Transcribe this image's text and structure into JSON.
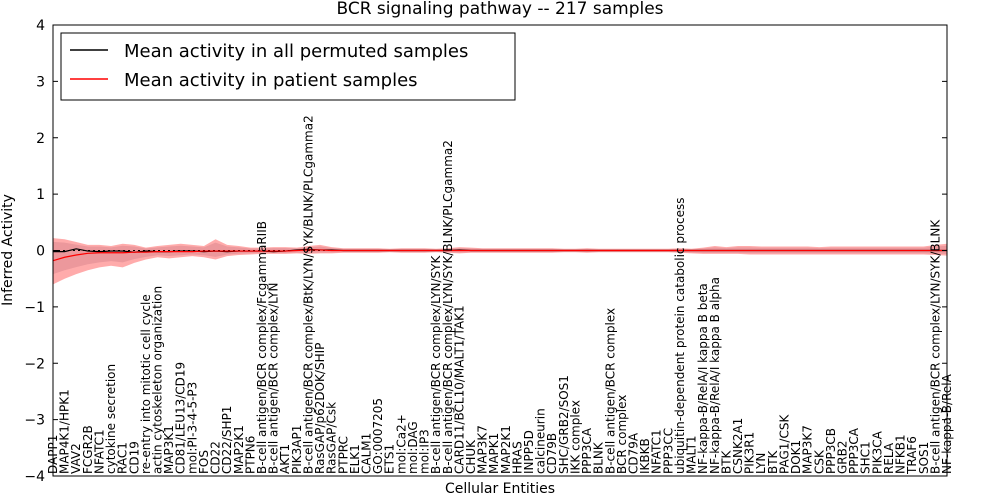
{
  "chart_data": {
    "type": "line",
    "title": "BCR signaling pathway -- 217 samples",
    "xlabel": "Cellular Entities",
    "ylabel": "Inferred Activity",
    "ylim": [
      -4,
      4
    ],
    "yticks": [
      -4,
      -3,
      -2,
      -1,
      0,
      1,
      2,
      3,
      4
    ],
    "ytick_labels": [
      "−4",
      "−3",
      "−2",
      "−1",
      "0",
      "1",
      "2",
      "3",
      "4"
    ],
    "legend": {
      "location": "top-left",
      "entries": [
        {
          "label": "Mean activity in all permuted samples",
          "color": "#000000"
        },
        {
          "label": "Mean activity in patient samples",
          "color": "#ff0000"
        }
      ]
    },
    "categories": [
      "DAPP1",
      "MAP4K1/HPK1",
      "VAV2",
      "FCGR2B",
      "NFATC1",
      "cytokine secretion",
      "RAC1",
      "CD19",
      "re-entry into mitotic cell cycle",
      "actin cytoskeleton organization",
      "MAP3K1",
      "CD81/LEU13/CD19",
      "mol:PI-3-4-5-P3",
      "FOS",
      "CD22",
      "CD22/SHP1",
      "MAP2K1",
      "PTPN6",
      "B-cell antigen/BCR complex/FcgammaRIIB",
      "B-cell antigen/BCR complex/LYN",
      "AKT1",
      "PIK3AP1",
      "B-cell antigen/BCR complex/BtK/LYN/SYK/BLNK/PLCgamma2",
      "RasGAP/p62DOK/SHIP",
      "RasGAP/Csk",
      "PTPRC",
      "ELK1",
      "CALM1",
      "GO:0007205",
      "ETS1",
      "mol:Ca2+",
      "mol:DAG",
      "mol:IP3",
      "B-cell antigen/BCR complex/LYN/SYK",
      "B-cell antigen/BCR complex/LYN/SYK/BLNK/PLCgamma2",
      "CARD11/BCL10/MALT1/TAK1",
      "CHUK",
      "MAP3K7",
      "MAPK1",
      "MAP2K1",
      "HRAS",
      "INPP5D",
      "calcineurin",
      "CD79B",
      "SHC/GRB2/SOS1",
      "IKK complex",
      "PPP3CA",
      "BLNK",
      "B-cell antigen/BCR complex",
      "BCR complex",
      "CD79A",
      "IKBKB",
      "NFATC1",
      "PPP3CC",
      "ubiquitin-dependent protein catabolic process",
      "MALT1",
      "NF-kappa-B/RelA/I kappa B beta",
      "NF-kappa-B/RelA/I kappa B alpha",
      "BTK",
      "CSNK2A1",
      "PIK3R1",
      "LYN",
      "BTK",
      "PAG1/CSK",
      "DOK1",
      "MAP3K7",
      "CSK",
      "PPP3CB",
      "GRB2",
      "PPP3CA",
      "SHC1",
      "PIK3CA",
      "RELA",
      "NFKB1",
      "TRAF6",
      "SOS1",
      "B-cell antigen/BCR complex/LYN/SYK/BLNK",
      "NF-kappa-B/RelA"
    ],
    "series": [
      {
        "name": "Mean activity in all permuted samples",
        "color": "#000000",
        "values": [
          -0.02,
          -0.02,
          0.03,
          -0.01,
          -0.02,
          -0.01,
          -0.01,
          -0.03,
          -0.01,
          -0.02,
          -0.02,
          -0.01,
          -0.01,
          -0.02,
          -0.01,
          -0.02,
          -0.01,
          -0.01,
          -0.01,
          -0.02,
          -0.01,
          0.01,
          0.02,
          0.01,
          0.01,
          0.0,
          0.0,
          0.0,
          0.0,
          0.0,
          0.0,
          0.0,
          0.0,
          0.0,
          0.0,
          0.01,
          0.0,
          0.0,
          0.0,
          0.0,
          0.0,
          0.0,
          0.0,
          0.0,
          0.0,
          0.0,
          0.0,
          0.0,
          0.0,
          0.0,
          0.0,
          0.0,
          0.0,
          0.0,
          0.0,
          0.0,
          0.0,
          0.0,
          0.0,
          0.0,
          0.0,
          0.0,
          0.0,
          0.0,
          0.0,
          0.0,
          0.0,
          0.0,
          0.0,
          0.0,
          0.0,
          0.0,
          0.0,
          0.0,
          0.0,
          0.0,
          0.0,
          0.0
        ]
      },
      {
        "name": "Mean activity in patient samples",
        "color": "#ff0000",
        "values": [
          -0.18,
          -0.12,
          -0.08,
          -0.05,
          -0.04,
          -0.04,
          -0.04,
          -0.03,
          -0.03,
          -0.02,
          -0.02,
          -0.02,
          -0.02,
          -0.01,
          -0.01,
          -0.01,
          -0.01,
          -0.01,
          -0.01,
          -0.01,
          -0.01,
          0.0,
          0.01,
          0.01,
          0.0,
          0.0,
          0.0,
          0.0,
          0.0,
          0.0,
          0.0,
          0.0,
          0.0,
          0.0,
          0.0,
          0.0,
          0.0,
          0.0,
          0.0,
          0.0,
          0.0,
          0.0,
          0.0,
          0.0,
          0.0,
          0.0,
          0.0,
          0.0,
          0.0,
          0.0,
          0.0,
          0.0,
          0.0,
          0.0,
          0.0,
          0.0,
          0.0,
          0.0,
          0.0,
          0.0,
          0.0,
          0.0,
          0.0,
          0.0,
          0.0,
          0.0,
          0.0,
          0.0,
          0.0,
          0.0,
          0.0,
          0.0,
          0.0,
          0.0,
          0.0,
          0.0,
          0.0,
          0.0
        ],
        "band_upper": [
          0.22,
          0.2,
          0.15,
          0.1,
          0.1,
          0.08,
          0.12,
          0.1,
          0.05,
          0.08,
          0.1,
          0.12,
          0.1,
          0.08,
          0.2,
          0.1,
          0.08,
          0.05,
          0.05,
          0.06,
          0.06,
          0.05,
          0.08,
          0.1,
          0.06,
          0.04,
          0.04,
          0.04,
          0.04,
          0.03,
          0.04,
          0.04,
          0.04,
          0.03,
          0.04,
          0.06,
          0.05,
          0.04,
          0.04,
          0.04,
          0.04,
          0.04,
          0.04,
          0.04,
          0.03,
          0.03,
          0.04,
          0.03,
          0.03,
          0.03,
          0.03,
          0.03,
          0.03,
          0.03,
          0.04,
          0.03,
          0.05,
          0.08,
          0.06,
          0.08,
          0.08,
          0.07,
          0.07,
          0.07,
          0.07,
          0.07,
          0.06,
          0.07,
          0.07,
          0.07,
          0.07,
          0.07,
          0.07,
          0.07,
          0.07,
          0.07,
          0.1,
          0.12
        ],
        "band_lower": [
          -0.6,
          -0.5,
          -0.42,
          -0.35,
          -0.3,
          -0.27,
          -0.3,
          -0.22,
          -0.16,
          -0.12,
          -0.14,
          -0.12,
          -0.1,
          -0.12,
          -0.16,
          -0.1,
          -0.08,
          -0.07,
          -0.06,
          -0.06,
          -0.06,
          -0.05,
          -0.06,
          -0.05,
          -0.05,
          -0.04,
          -0.04,
          -0.04,
          -0.04,
          -0.03,
          -0.04,
          -0.04,
          -0.04,
          -0.03,
          -0.04,
          -0.05,
          -0.04,
          -0.04,
          -0.04,
          -0.04,
          -0.04,
          -0.04,
          -0.04,
          -0.04,
          -0.03,
          -0.03,
          -0.04,
          -0.03,
          -0.03,
          -0.03,
          -0.03,
          -0.03,
          -0.03,
          -0.03,
          -0.04,
          -0.05,
          -0.06,
          -0.06,
          -0.06,
          -0.06,
          -0.07,
          -0.07,
          -0.07,
          -0.07,
          -0.07,
          -0.07,
          -0.07,
          -0.07,
          -0.07,
          -0.07,
          -0.07,
          -0.07,
          -0.07,
          -0.07,
          -0.07,
          -0.07,
          -0.08,
          -0.09
        ]
      }
    ]
  }
}
